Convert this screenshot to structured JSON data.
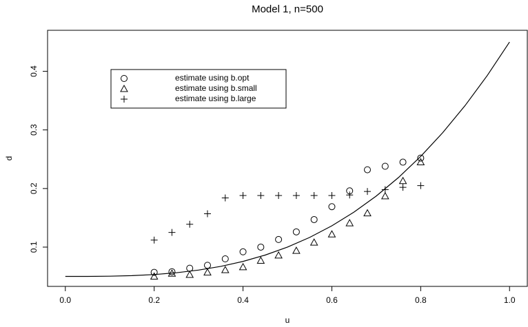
{
  "chart_data": {
    "type": "scatter",
    "title": "Model 1, n=500",
    "x_label": "u",
    "y_label": "d",
    "xlim": [
      -0.04,
      1.04
    ],
    "ylim": [
      0.033,
      0.47
    ],
    "xticks": [
      {
        "value": 0,
        "label": "0.0"
      },
      {
        "value": 0.2,
        "label": "0.2"
      },
      {
        "value": 0.4,
        "label": "0.4"
      },
      {
        "value": 0.6,
        "label": "0.6"
      },
      {
        "value": 0.8,
        "label": "0.8"
      },
      {
        "value": 1,
        "label": "1.0"
      }
    ],
    "yticks": [
      0.1,
      0.2,
      0.3,
      0.4
    ],
    "legend": "top-left",
    "series": [
      {
        "name": "estimate using b.opt",
        "marker": "circle",
        "color": "#000000",
        "x": [
          0.2,
          0.24,
          0.28,
          0.32,
          0.36,
          0.4,
          0.44,
          0.48,
          0.52,
          0.56,
          0.6,
          0.64,
          0.68,
          0.72,
          0.76,
          0.8
        ],
        "values": [
          0.057,
          0.058,
          0.064,
          0.069,
          0.08,
          0.092,
          0.1,
          0.113,
          0.126,
          0.147,
          0.169,
          0.196,
          0.232,
          0.238,
          0.245,
          0.252
        ]
      },
      {
        "name": "estimate using b.small",
        "marker": "triangle",
        "color": "#000000",
        "x": [
          0.2,
          0.24,
          0.28,
          0.32,
          0.36,
          0.4,
          0.44,
          0.48,
          0.52,
          0.56,
          0.6,
          0.64,
          0.68,
          0.72,
          0.76,
          0.8
        ],
        "values": [
          0.05,
          0.055,
          0.053,
          0.057,
          0.061,
          0.066,
          0.077,
          0.086,
          0.094,
          0.108,
          0.122,
          0.141,
          0.158,
          0.187,
          0.213,
          0.245
        ]
      },
      {
        "name": "estimate using b.large",
        "marker": "plus",
        "color": "#000000",
        "x": [
          0.2,
          0.24,
          0.28,
          0.32,
          0.36,
          0.4,
          0.44,
          0.48,
          0.52,
          0.56,
          0.6,
          0.64,
          0.68,
          0.72,
          0.76,
          0.8
        ],
        "values": [
          0.112,
          0.125,
          0.139,
          0.157,
          0.184,
          0.188,
          0.188,
          0.188,
          0.188,
          0.188,
          0.188,
          0.189,
          0.195,
          0.198,
          0.202,
          0.205
        ]
      },
      {
        "marker": "line",
        "color": "#000000",
        "x": [
          0,
          0.05,
          0.1,
          0.15,
          0.2,
          0.25,
          0.3,
          0.35,
          0.4,
          0.45,
          0.5,
          0.55,
          0.6,
          0.65,
          0.7,
          0.75,
          0.8,
          0.85,
          0.9,
          0.95,
          1
        ],
        "values": [
          0.05,
          0.05005,
          0.0504,
          0.05135,
          0.0532,
          0.05625,
          0.0608,
          0.06715,
          0.0756,
          0.08645,
          0.1,
          0.11655,
          0.1364,
          0.15985,
          0.1872,
          0.21875,
          0.2548,
          0.29565,
          0.3416,
          0.39295,
          0.45
        ]
      }
    ]
  }
}
